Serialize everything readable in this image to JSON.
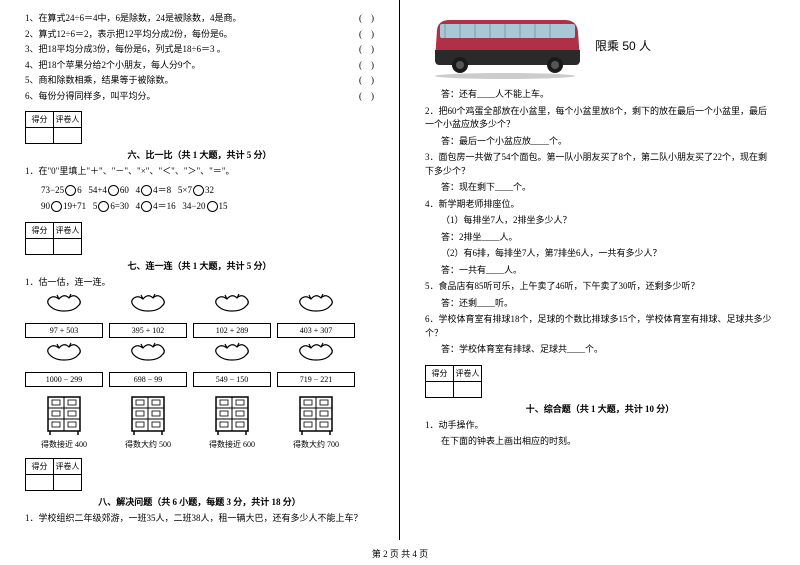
{
  "left": {
    "judgments": [
      {
        "n": "1",
        "t": "在算式24÷6＝4中，6是除数，24是被除数，4是商。"
      },
      {
        "n": "2",
        "t": "算式12÷6＝2，表示把12平均分成2份，每份是6。"
      },
      {
        "n": "3",
        "t": "把18平均分成3份，每份是6，列式是18÷6＝3 。"
      },
      {
        "n": "4",
        "t": "把18个苹果分给2个小朋友，每人分9个。"
      },
      {
        "n": "5",
        "t": "商和除数相乘，结果等于被除数。"
      },
      {
        "n": "6",
        "t": "每份分得同样多，叫平均分。"
      }
    ],
    "score_labels": {
      "a": "得分",
      "b": "评卷人"
    },
    "sec6_title": "六、比一比（共 1 大题，共计 5 分）",
    "sec6_intro": "1．在\"0\"里填上\"＋\"、\"－\"、\"×\"、\"＜\"、\"＞\"、\"＝\"。",
    "sec6_row1": [
      "73−25",
      "6",
      "54+4",
      "60",
      "4",
      "4＝8",
      "5×7",
      "32"
    ],
    "sec6_row2": [
      "90",
      "19+71",
      "5",
      "6=30",
      "4",
      "4＝16",
      "34−20",
      "15"
    ],
    "sec7_title": "七、连一连（共 1 大题，共计 5 分）",
    "sec7_intro": "1．估一估，连一连。",
    "doves1": [
      "97 + 503",
      "395 + 102",
      "102 + 289",
      "403 + 307"
    ],
    "doves2": [
      "1000 − 299",
      "698 − 99",
      "549 − 150",
      "719 − 221"
    ],
    "cabinets": [
      "得数接近 400",
      "得数大约 500",
      "得数接近 600",
      "得数大约 700"
    ],
    "sec8_title": "八、解决问题（共 6 小题，每题 3 分，共计 18 分）",
    "sec8_q1": "1．学校组织二年级郊游，一班35人，二班38人，租一辆大巴，还有多少人不能上车？"
  },
  "right": {
    "bus_text": "限乘 50 人",
    "q1a": "答：还有____人不能上车。",
    "q2": "2．把60个鸡蛋全部放在小盆里，每个小盆里放8个，剩下的放在最后一个小盆里，最后一个小盆应放多少个？",
    "q2a": "答：最后一个小盆应放____个。",
    "q3": "3．面包房一共做了54个面包。第一队小朋友买了8个，第二队小朋友买了22个，现在剩下多少个？",
    "q3a": "答：现在剩下____个。",
    "q4": "4．新学期老师排座位。",
    "q4_1": "（1）每排坐7人，2排坐多少人？",
    "q4_1a": "答：2排坐____人。",
    "q4_2": "（2）有6排，每排坐7人，第7排坐6人，一共有多少人？",
    "q4_2a": "答：一共有____人。",
    "q5": "5．食品店有85听可乐，上午卖了46听，下午卖了30听，还剩多少听？",
    "q5a": "答：还剩____听。",
    "q6": "6．学校体育室有排球18个，足球的个数比排球多15个，学校体育室有排球、足球共多少个？",
    "q6a": "答：学校体育室有排球、足球共____个。",
    "sec10_title": "十、综合题（共 1 大题，共计 10 分）",
    "sec10_q1": "1．动手操作。",
    "sec10_q1t": "在下面的钟表上画出相应的时刻。"
  },
  "footer": "第 2 页 共 4 页",
  "colors": {
    "bus_body": "#b03048",
    "bus_dark": "#2a2a2a",
    "bus_window": "#a8c8d8"
  }
}
